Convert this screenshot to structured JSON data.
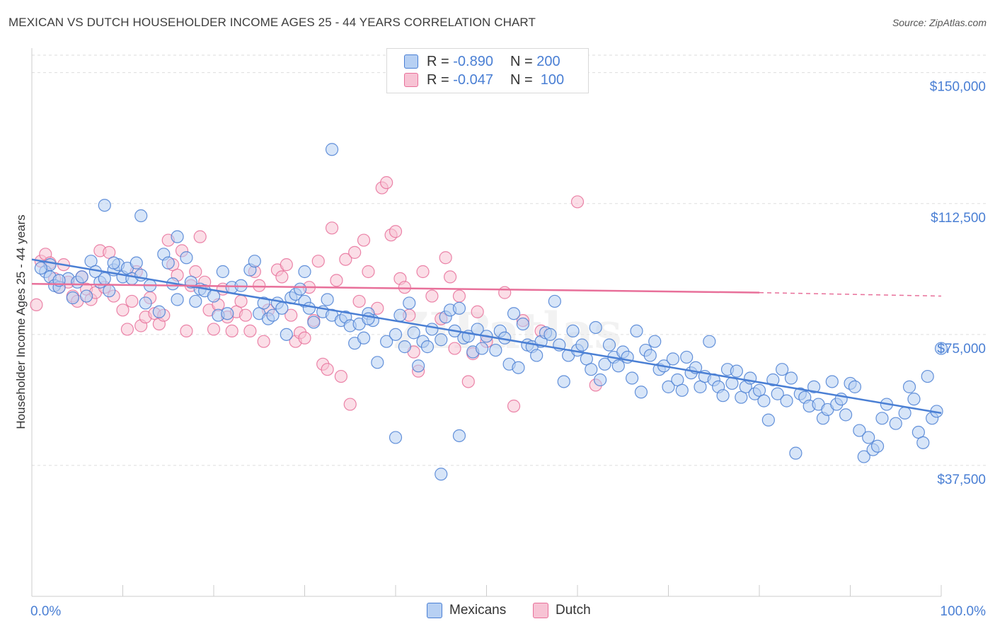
{
  "header": {
    "title": "MEXICAN VS DUTCH HOUSEHOLDER INCOME AGES 25 - 44 YEARS CORRELATION CHART",
    "source": "Source: ZipAtlas.com"
  },
  "legend_top": {
    "rows": [
      {
        "r_label": "R =",
        "r_value": "-0.890",
        "n_label": "N =",
        "n_value": "200"
      },
      {
        "r_label": "R =",
        "r_value": "-0.047",
        "n_label": "N =",
        "n_value": "100"
      }
    ]
  },
  "bottom_legend": {
    "mexicans": "Mexicans",
    "dutch": "Dutch"
  },
  "colors": {
    "blue": "#4a7fd4",
    "blue_fill": "#b7d0f3",
    "pink": "#e8709a",
    "pink_fill": "#f7c3d4",
    "grid": "#dddddd",
    "tick_text": "#4a7fd4"
  },
  "chart_data": {
    "type": "scatter",
    "title": "MEXICAN VS DUTCH HOUSEHOLDER INCOME AGES 25 - 44 YEARS CORRELATION CHART",
    "xlabel": "",
    "ylabel": "Householder Income Ages 25 - 44 years",
    "xlim": [
      0,
      100
    ],
    "ylim": [
      0,
      155000
    ],
    "x_tick_labels": [
      "0.0%",
      "100.0%"
    ],
    "y_ticks": [
      37500,
      75000,
      112500,
      150000
    ],
    "y_tick_labels": [
      "$37,500",
      "$75,000",
      "$112,500",
      "$150,000"
    ],
    "grid": true,
    "legend_position": "top-center",
    "series": [
      {
        "name": "Mexicans",
        "color": "#4a7fd4",
        "r": -0.89,
        "n": 200,
        "trend": {
          "x": [
            0,
            100
          ],
          "y": [
            96500,
            52500
          ]
        },
        "points": [
          [
            1.5,
            93000
          ],
          [
            2,
            91500
          ],
          [
            2.5,
            89000
          ],
          [
            3,
            88500
          ],
          [
            4,
            91000
          ],
          [
            4.5,
            85500
          ],
          [
            5,
            90000
          ],
          [
            5.5,
            91500
          ],
          [
            6,
            86000
          ],
          [
            6.5,
            96000
          ],
          [
            7,
            93000
          ],
          [
            7.5,
            90000
          ],
          [
            8,
            91000
          ],
          [
            8.5,
            87500
          ],
          [
            9,
            93500
          ],
          [
            9.5,
            95000
          ],
          [
            10,
            91500
          ],
          [
            10.5,
            94000
          ],
          [
            11,
            91000
          ],
          [
            11.5,
            95500
          ],
          [
            12,
            92000
          ],
          [
            12.5,
            84000
          ],
          [
            13,
            89000
          ],
          [
            14,
            81500
          ],
          [
            14.5,
            98000
          ],
          [
            15,
            95500
          ],
          [
            15.5,
            89500
          ],
          [
            16,
            85000
          ],
          [
            17,
            97000
          ],
          [
            17.5,
            90000
          ],
          [
            18,
            84500
          ],
          [
            18.5,
            88000
          ],
          [
            19,
            87500
          ],
          [
            20,
            86000
          ],
          [
            20.5,
            80500
          ],
          [
            21,
            93000
          ],
          [
            21.5,
            81000
          ],
          [
            22,
            88500
          ],
          [
            23,
            89000
          ],
          [
            24,
            93500
          ],
          [
            24.5,
            96000
          ],
          [
            25,
            81000
          ],
          [
            25.5,
            84000
          ],
          [
            26,
            79500
          ],
          [
            26.5,
            80500
          ],
          [
            27,
            84000
          ],
          [
            27.5,
            82500
          ],
          [
            28,
            75000
          ],
          [
            28.5,
            85500
          ],
          [
            29,
            86500
          ],
          [
            29.5,
            88000
          ],
          [
            30,
            84500
          ],
          [
            30.5,
            82500
          ],
          [
            31,
            78500
          ],
          [
            32,
            81500
          ],
          [
            32.5,
            85000
          ],
          [
            33,
            80500
          ],
          [
            34,
            79000
          ],
          [
            34.5,
            80000
          ],
          [
            35,
            77500
          ],
          [
            35.5,
            72500
          ],
          [
            36,
            78000
          ],
          [
            36.5,
            74000
          ],
          [
            37,
            81000
          ],
          [
            37.5,
            79000
          ],
          [
            38,
            67000
          ],
          [
            39,
            73000
          ],
          [
            40,
            75000
          ],
          [
            40.5,
            80500
          ],
          [
            41,
            71500
          ],
          [
            41.5,
            84000
          ],
          [
            42,
            75500
          ],
          [
            42.5,
            66000
          ],
          [
            43,
            73000
          ],
          [
            43.5,
            71500
          ],
          [
            44,
            76500
          ],
          [
            45,
            73500
          ],
          [
            45.5,
            80000
          ],
          [
            46,
            82000
          ],
          [
            46.5,
            76000
          ],
          [
            47,
            82500
          ],
          [
            47.5,
            74000
          ],
          [
            48,
            74500
          ],
          [
            48.5,
            70000
          ],
          [
            49,
            76500
          ],
          [
            49.5,
            71000
          ],
          [
            50,
            74500
          ],
          [
            51,
            70500
          ],
          [
            51.5,
            76000
          ],
          [
            52,
            74000
          ],
          [
            52.5,
            66500
          ],
          [
            53,
            81000
          ],
          [
            53.5,
            65500
          ],
          [
            54,
            78000
          ],
          [
            54.5,
            72000
          ],
          [
            55,
            71500
          ],
          [
            55.5,
            69000
          ],
          [
            56,
            73000
          ],
          [
            56.5,
            75500
          ],
          [
            57,
            75000
          ],
          [
            57.5,
            84500
          ],
          [
            58,
            72000
          ],
          [
            58.5,
            61500
          ],
          [
            59,
            69000
          ],
          [
            59.5,
            76000
          ],
          [
            60,
            70500
          ],
          [
            60.5,
            72000
          ],
          [
            61,
            68000
          ],
          [
            61.5,
            65000
          ],
          [
            62,
            77000
          ],
          [
            62.5,
            62000
          ],
          [
            63,
            66500
          ],
          [
            63.5,
            72000
          ],
          [
            64,
            68500
          ],
          [
            64.5,
            66000
          ],
          [
            65,
            70000
          ],
          [
            65.5,
            68500
          ],
          [
            66,
            62500
          ],
          [
            66.5,
            76000
          ],
          [
            67,
            58500
          ],
          [
            67.5,
            70500
          ],
          [
            68,
            69000
          ],
          [
            68.5,
            73000
          ],
          [
            69,
            65000
          ],
          [
            69.5,
            66000
          ],
          [
            70,
            60000
          ],
          [
            70.5,
            68000
          ],
          [
            71,
            62000
          ],
          [
            71.5,
            59000
          ],
          [
            72,
            68500
          ],
          [
            72.5,
            64000
          ],
          [
            73,
            65500
          ],
          [
            73.5,
            60000
          ],
          [
            74,
            63000
          ],
          [
            74.5,
            73000
          ],
          [
            75,
            62000
          ],
          [
            75.5,
            60000
          ],
          [
            76,
            57500
          ],
          [
            76.5,
            65000
          ],
          [
            77,
            61000
          ],
          [
            77.5,
            64500
          ],
          [
            78,
            57000
          ],
          [
            78.5,
            60000
          ],
          [
            79,
            62500
          ],
          [
            79.5,
            58000
          ],
          [
            80,
            59000
          ],
          [
            80.5,
            56000
          ],
          [
            81,
            50500
          ],
          [
            81.5,
            62000
          ],
          [
            82,
            58000
          ],
          [
            82.5,
            65000
          ],
          [
            83,
            56000
          ],
          [
            83.5,
            62500
          ],
          [
            84,
            41000
          ],
          [
            84.5,
            58000
          ],
          [
            85,
            57000
          ],
          [
            85.5,
            54500
          ],
          [
            86,
            60000
          ],
          [
            86.5,
            55000
          ],
          [
            87,
            51000
          ],
          [
            87.5,
            53500
          ],
          [
            88,
            61500
          ],
          [
            88.5,
            55000
          ],
          [
            89,
            56500
          ],
          [
            89.5,
            52000
          ],
          [
            90,
            61000
          ],
          [
            90.5,
            60000
          ],
          [
            91,
            47500
          ],
          [
            91.5,
            40000
          ],
          [
            92,
            45500
          ],
          [
            92.5,
            42000
          ],
          [
            93,
            43000
          ],
          [
            93.5,
            51000
          ],
          [
            94,
            55000
          ],
          [
            95,
            49500
          ],
          [
            96,
            52500
          ],
          [
            96.5,
            60000
          ],
          [
            97,
            56500
          ],
          [
            97.5,
            47000
          ],
          [
            98,
            44000
          ],
          [
            98.5,
            63000
          ],
          [
            99,
            51000
          ],
          [
            99.5,
            53000
          ],
          [
            100,
            71000
          ],
          [
            33,
            128000
          ],
          [
            12,
            109000
          ],
          [
            8,
            112000
          ],
          [
            30,
            93000
          ],
          [
            16,
            103000
          ],
          [
            9,
            95500
          ],
          [
            2,
            95000
          ],
          [
            3,
            90500
          ],
          [
            1,
            94000
          ],
          [
            45,
            35000
          ],
          [
            47,
            46000
          ],
          [
            40,
            45500
          ],
          [
            37,
            79500
          ]
        ]
      },
      {
        "name": "Dutch",
        "color": "#e8709a",
        "r": -0.047,
        "n": 100,
        "trend": {
          "x": [
            0,
            80
          ],
          "y": [
            89500,
            87000
          ]
        },
        "trend_dashed": {
          "x": [
            80,
            100
          ],
          "y": [
            87000,
            86000
          ]
        },
        "points": [
          [
            0.5,
            83500
          ],
          [
            1,
            96000
          ],
          [
            1.5,
            98000
          ],
          [
            2,
            95500
          ],
          [
            2.5,
            91000
          ],
          [
            3,
            88500
          ],
          [
            3.5,
            95000
          ],
          [
            4,
            90000
          ],
          [
            4.5,
            86000
          ],
          [
            5,
            84500
          ],
          [
            5.5,
            91500
          ],
          [
            6,
            88000
          ],
          [
            6.5,
            85000
          ],
          [
            7,
            87000
          ],
          [
            7.5,
            99000
          ],
          [
            8,
            88500
          ],
          [
            8.5,
            98500
          ],
          [
            9,
            86000
          ],
          [
            10,
            82000
          ],
          [
            10.5,
            76500
          ],
          [
            11,
            84500
          ],
          [
            11.5,
            93000
          ],
          [
            12,
            77500
          ],
          [
            12.5,
            80000
          ],
          [
            13,
            85500
          ],
          [
            13.5,
            81000
          ],
          [
            14,
            78000
          ],
          [
            14.5,
            80500
          ],
          [
            15,
            102000
          ],
          [
            15.5,
            95000
          ],
          [
            16,
            92000
          ],
          [
            16.5,
            99000
          ],
          [
            17,
            76000
          ],
          [
            17.5,
            89000
          ],
          [
            18,
            93000
          ],
          [
            18.5,
            103000
          ],
          [
            19,
            90000
          ],
          [
            19.5,
            82000
          ],
          [
            20,
            76500
          ],
          [
            20.5,
            83500
          ],
          [
            21,
            88000
          ],
          [
            21.5,
            80000
          ],
          [
            22,
            76000
          ],
          [
            22.5,
            81500
          ],
          [
            23,
            84500
          ],
          [
            23.5,
            80500
          ],
          [
            24,
            76000
          ],
          [
            24.5,
            93000
          ],
          [
            25,
            89000
          ],
          [
            25.5,
            73000
          ],
          [
            26,
            82000
          ],
          [
            27,
            93500
          ],
          [
            27.5,
            91500
          ],
          [
            28,
            95000
          ],
          [
            28.5,
            80500
          ],
          [
            29,
            73000
          ],
          [
            29.5,
            75500
          ],
          [
            30,
            74000
          ],
          [
            30.5,
            88500
          ],
          [
            31,
            79000
          ],
          [
            31.5,
            96000
          ],
          [
            32,
            66500
          ],
          [
            32.5,
            65000
          ],
          [
            33,
            105500
          ],
          [
            33.5,
            90500
          ],
          [
            34,
            63000
          ],
          [
            34.5,
            96500
          ],
          [
            35,
            55000
          ],
          [
            35.5,
            98500
          ],
          [
            36,
            84500
          ],
          [
            36.5,
            102000
          ],
          [
            37,
            93000
          ],
          [
            38,
            82500
          ],
          [
            38.5,
            117000
          ],
          [
            39,
            118500
          ],
          [
            39.5,
            103500
          ],
          [
            40,
            104500
          ],
          [
            40.5,
            91000
          ],
          [
            41,
            88500
          ],
          [
            41.5,
            80500
          ],
          [
            42,
            70000
          ],
          [
            42.5,
            64500
          ],
          [
            43,
            93000
          ],
          [
            44,
            86000
          ],
          [
            45,
            79500
          ],
          [
            45.5,
            97000
          ],
          [
            46,
            91500
          ],
          [
            46.5,
            71000
          ],
          [
            47,
            86000
          ],
          [
            48,
            61500
          ],
          [
            48.5,
            69500
          ],
          [
            49,
            81500
          ],
          [
            50,
            73000
          ],
          [
            52,
            87000
          ],
          [
            53,
            54500
          ],
          [
            54,
            79000
          ],
          [
            56,
            76000
          ],
          [
            60,
            113000
          ],
          [
            62,
            60500
          ]
        ]
      }
    ]
  }
}
